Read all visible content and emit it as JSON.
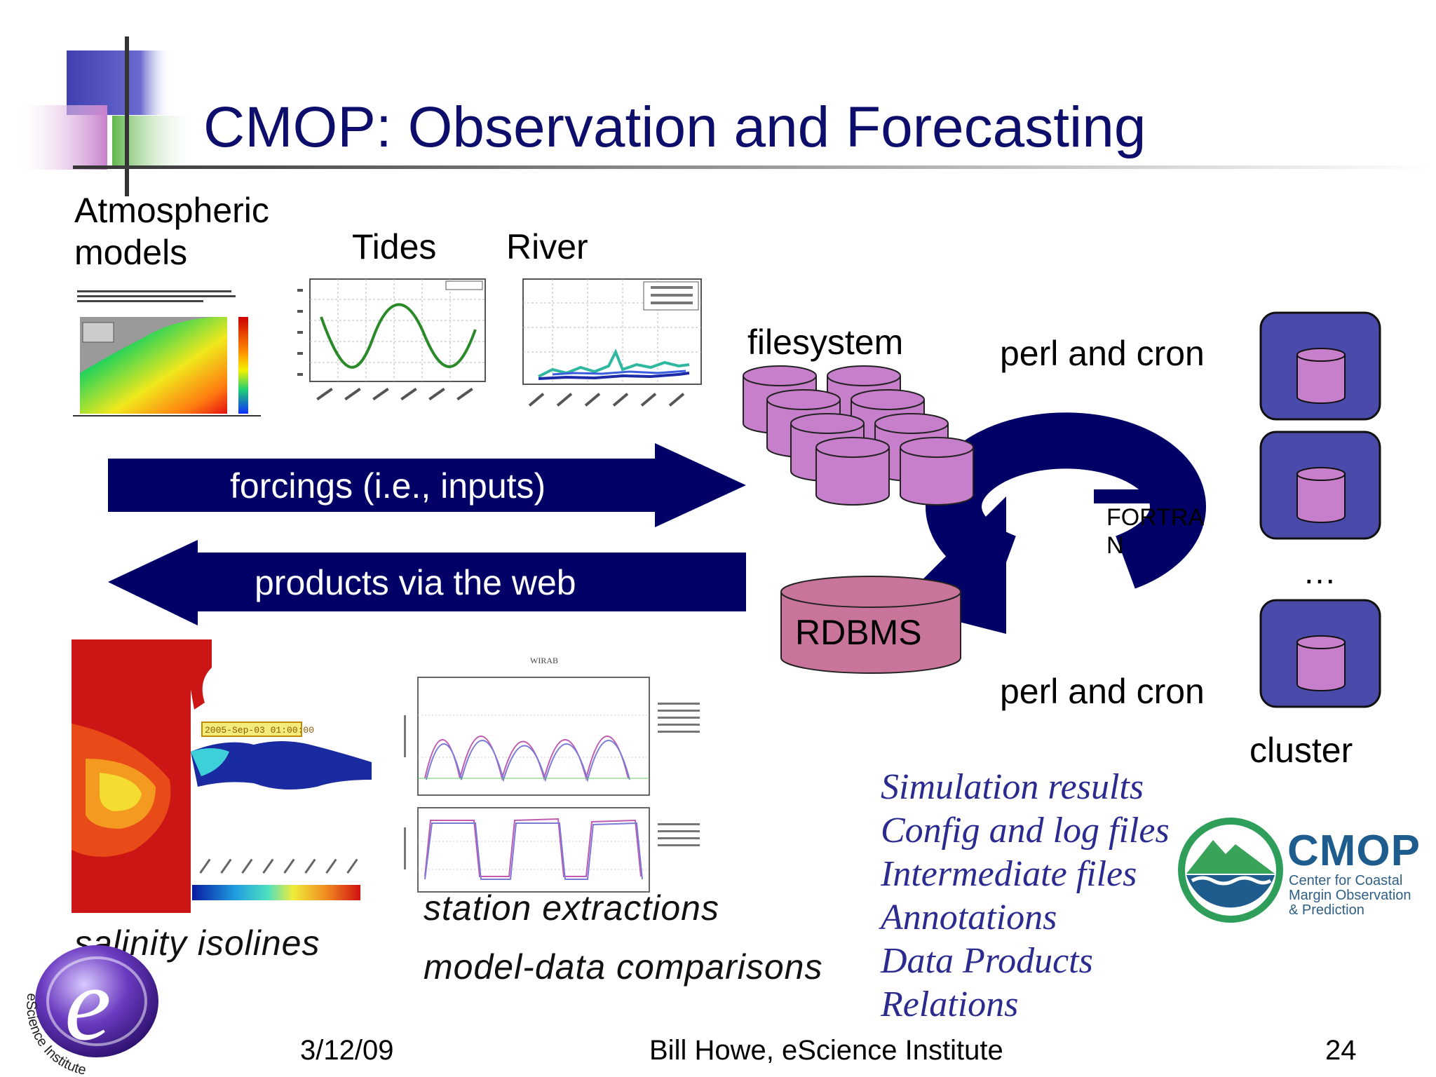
{
  "slide": {
    "title": "CMOP: Observation and Forecasting"
  },
  "labels": {
    "atmospheric_line1": "Atmospheric",
    "atmospheric_line2": "models",
    "tides": "Tides",
    "river": "River",
    "filesystem": "filesystem",
    "perl_cron_top": "perl and cron",
    "perl_cron_bottom": "perl and cron",
    "fortran_line1": "FORTRA",
    "fortran_line2": "N",
    "rdbms": "RDBMS",
    "ellipsis": "…",
    "cluster": "cluster"
  },
  "arrows": {
    "forcings": "forcings (i.e., inputs)",
    "products": "products via the web"
  },
  "captions": {
    "salinity": "salinity isolines",
    "station": "station extractions",
    "model_data": "model-data comparisons"
  },
  "data_list": [
    "Simulation results",
    "Config and log files",
    "Intermediate files",
    "Annotations",
    "Data Products",
    "Relations"
  ],
  "plots": {
    "sim_plot_title": "WIRAB",
    "timestamp": "2005-Sep-03 01:00:00"
  },
  "logos": {
    "cmop_word": "CMOP",
    "cmop_sub1": "Center for Coastal",
    "cmop_sub2": "Margin Observation",
    "cmop_sub3": "& Prediction",
    "escience_letter": "e",
    "escience_text": "eScience Institute"
  },
  "footer": {
    "date": "3/12/09",
    "author": "Bill Howe, eScience Institute",
    "page": "24"
  },
  "colors": {
    "navy": "#000066",
    "title": "#0d0d6b",
    "disk": "#c77fcc",
    "cluster_box": "#4a4aaa",
    "rdbms": "#c9749a"
  }
}
